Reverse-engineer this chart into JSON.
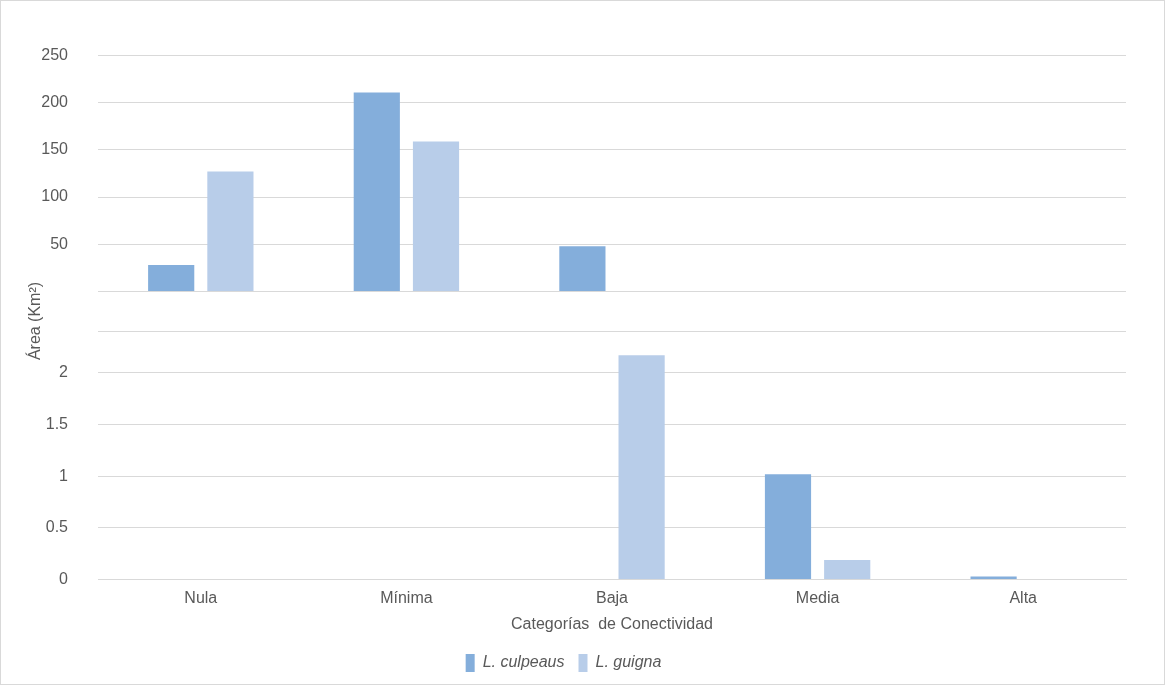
{
  "chart_data": [
    {
      "type": "bar",
      "ylabel": "Área (Km²)",
      "categories": [
        null,
        null,
        null,
        null,
        null
      ],
      "series": [
        {
          "color": "#84aedb",
          "values": [
            28,
            211,
            48,
            null,
            null
          ]
        },
        {
          "color": "#b8cde9",
          "values": [
            127,
            159,
            null,
            null,
            null
          ]
        }
      ],
      "ylim": [
        0,
        250
      ],
      "yticks": [
        {
          "value": 0,
          "label": null
        },
        50,
        100,
        150,
        200,
        250
      ],
      "grid": "y",
      "tick_labels": "y"
    },
    {
      "type": "bar",
      "xlabel": "Categorías  de Conectividad",
      "categories": [
        "Nula",
        "Mínima",
        "Baja",
        "Media",
        "Alta"
      ],
      "series": [
        {
          "name": "L. culpeaus",
          "color": "#84aedb",
          "values": [
            null,
            null,
            null,
            1.02,
            0.03
          ]
        },
        {
          "name": "L. guigna",
          "color": "#b8cde9",
          "values": [
            null,
            null,
            2.17,
            0.19,
            0
          ]
        }
      ],
      "ylim": [
        0,
        2.4
      ],
      "yticks": [
        0,
        0.5,
        1,
        1.5,
        2,
        {
          "value": 2.4,
          "label": null
        }
      ],
      "grid": "y",
      "legend": "bottom"
    }
  ]
}
